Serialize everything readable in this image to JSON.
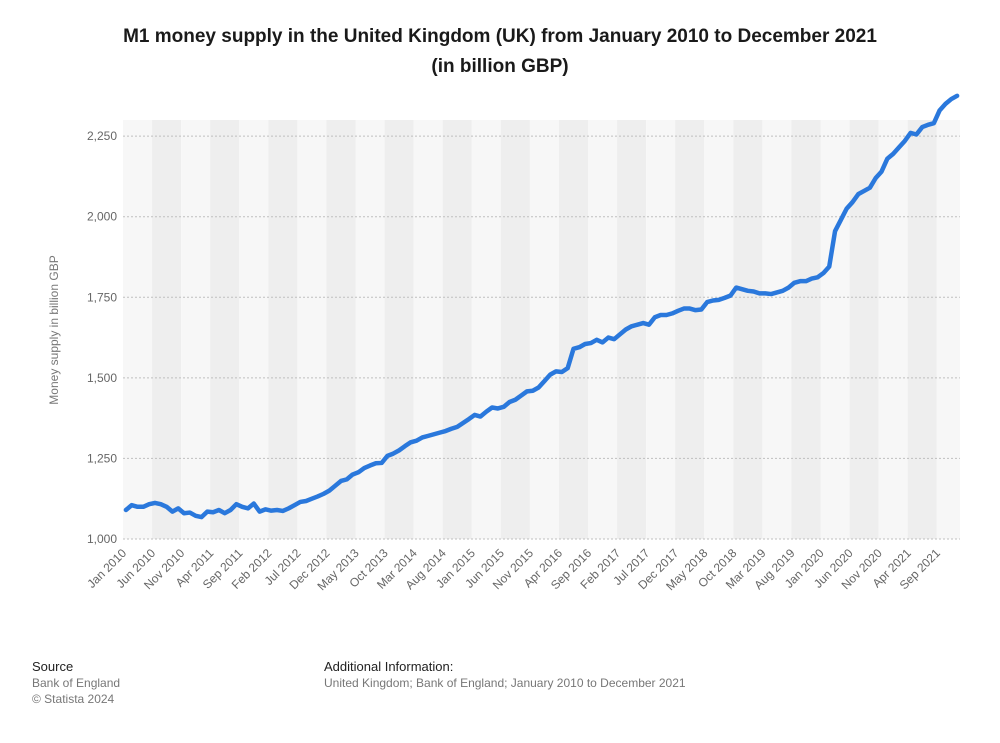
{
  "title": {
    "line1": "M1 money supply in the United Kingdom (UK) from January 2010 to December 2021",
    "line2": "(in billion GBP)"
  },
  "colors": {
    "line": "#2a78dc",
    "band_light": "#f7f7f7",
    "band_dark": "#eeeeee",
    "grid": "#bfbfbf",
    "tick_text": "#666666"
  },
  "source": {
    "heading": "Source",
    "lines": [
      "Bank of England",
      "© Statista 2024"
    ]
  },
  "additional": {
    "heading": "Additional Information:",
    "text": "United Kingdom; Bank of England; January 2010 to December 2021"
  },
  "chart_data": {
    "type": "line",
    "xlabel": "",
    "ylabel": "Money supply in billion GBP",
    "ylim": [
      1000,
      2300
    ],
    "yticks": [
      1000,
      1250,
      1500,
      1750,
      2000,
      2250
    ],
    "ytick_labels": [
      "1,000",
      "1,250",
      "1,500",
      "1,750",
      "2,000",
      "2,250"
    ],
    "x_start": "Jan 2010",
    "x_end": "Dec 2021",
    "x_tick_labels": [
      "Jan 2010",
      "Jun 2010",
      "Nov 2010",
      "Apr 2011",
      "Sep 2011",
      "Feb 2012",
      "Jul 2012",
      "Dec 2012",
      "May 2013",
      "Oct 2013",
      "Mar 2014",
      "Aug 2014",
      "Jan 2015",
      "Jun 2015",
      "Nov 2015",
      "Apr 2016",
      "Sep 2016",
      "Feb 2017",
      "Jul 2017",
      "Dec 2017",
      "May 2018",
      "Oct 2018",
      "Mar 2019",
      "Aug 2019",
      "Jan 2020",
      "Jun 2020",
      "Nov 2020",
      "Apr 2021",
      "Sep 2021"
    ],
    "grid": true,
    "legend": "none",
    "series": [
      {
        "values": [
          1090,
          1105,
          1100,
          1100,
          1108,
          1112,
          1108,
          1100,
          1085,
          1095,
          1080,
          1082,
          1072,
          1068,
          1085,
          1083,
          1090,
          1080,
          1090,
          1108,
          1100,
          1095,
          1110,
          1085,
          1092,
          1088,
          1090,
          1087,
          1095,
          1105,
          1115,
          1118,
          1125,
          1132,
          1140,
          1150,
          1165,
          1180,
          1185,
          1200,
          1207,
          1220,
          1228,
          1235,
          1236,
          1258,
          1265,
          1275,
          1288,
          1300,
          1305,
          1315,
          1320,
          1325,
          1330,
          1335,
          1342,
          1348,
          1360,
          1372,
          1385,
          1380,
          1395,
          1408,
          1405,
          1410,
          1425,
          1432,
          1445,
          1458,
          1460,
          1470,
          1490,
          1510,
          1520,
          1518,
          1530,
          1590,
          1595,
          1605,
          1608,
          1618,
          1610,
          1625,
          1620,
          1635,
          1650,
          1660,
          1665,
          1670,
          1665,
          1688,
          1695,
          1695,
          1700,
          1708,
          1715,
          1715,
          1710,
          1712,
          1735,
          1740,
          1742,
          1748,
          1755,
          1780,
          1775,
          1770,
          1768,
          1762,
          1762,
          1760,
          1765,
          1770,
          1780,
          1795,
          1800,
          1800,
          1808,
          1812,
          1825,
          1845,
          1955,
          1990,
          2025,
          2045,
          2070,
          2080,
          2090,
          2120,
          2140,
          2180,
          2195,
          2215,
          2235,
          2260,
          2255,
          2278,
          2285,
          2290,
          2330,
          2350,
          2365,
          2375
        ]
      }
    ]
  }
}
